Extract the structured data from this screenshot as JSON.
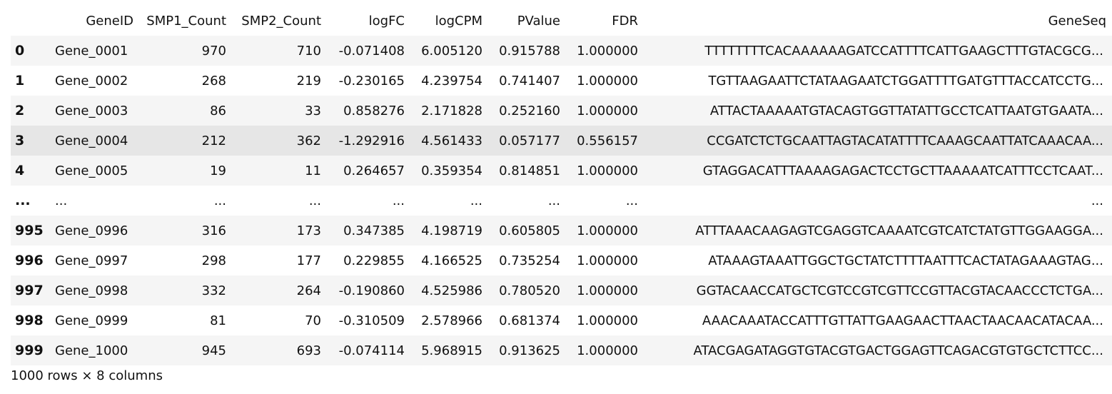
{
  "columns": [
    "",
    "GeneID",
    "SMP1_Count",
    "SMP2_Count",
    "logFC",
    "logCPM",
    "PValue",
    "FDR",
    "GeneSeq"
  ],
  "rows": [
    {
      "idx": "0",
      "GeneID": "Gene_0001",
      "SMP1_Count": "970",
      "SMP2_Count": "710",
      "logFC": "-0.071408",
      "logCPM": "6.005120",
      "PValue": "0.915788",
      "FDR": "1.000000",
      "GeneSeq": "TTTTTTTTCACAAAAAAGATCCATTTTCATTGAAGCTTTGTACGCG..."
    },
    {
      "idx": "1",
      "GeneID": "Gene_0002",
      "SMP1_Count": "268",
      "SMP2_Count": "219",
      "logFC": "-0.230165",
      "logCPM": "4.239754",
      "PValue": "0.741407",
      "FDR": "1.000000",
      "GeneSeq": "TGTTAAGAATTCTATAAGAATCTGGATTTTGATGTTTACCATCCTG..."
    },
    {
      "idx": "2",
      "GeneID": "Gene_0003",
      "SMP1_Count": "86",
      "SMP2_Count": "33",
      "logFC": "0.858276",
      "logCPM": "2.171828",
      "PValue": "0.252160",
      "FDR": "1.000000",
      "GeneSeq": "ATTACTAAAAATGTACAGTGGTTATATTGCCTCATTAATGTGAATA..."
    },
    {
      "idx": "3",
      "GeneID": "Gene_0004",
      "SMP1_Count": "212",
      "SMP2_Count": "362",
      "logFC": "-1.292916",
      "logCPM": "4.561433",
      "PValue": "0.057177",
      "FDR": "0.556157",
      "GeneSeq": "CCGATCTCTGCAATTAGTACATATTTTCAAAGCAATTATCAAACAA...",
      "hover": true
    },
    {
      "idx": "4",
      "GeneID": "Gene_0005",
      "SMP1_Count": "19",
      "SMP2_Count": "11",
      "logFC": "0.264657",
      "logCPM": "0.359354",
      "PValue": "0.814851",
      "FDR": "1.000000",
      "GeneSeq": "GTAGGACATTTAAAAGAGACTCCTGCTTAAAAATCATTTCCTCAAT..."
    },
    {
      "idx": "...",
      "GeneID": "...",
      "SMP1_Count": "...",
      "SMP2_Count": "...",
      "logFC": "...",
      "logCPM": "...",
      "PValue": "...",
      "FDR": "...",
      "GeneSeq": "..."
    },
    {
      "idx": "995",
      "GeneID": "Gene_0996",
      "SMP1_Count": "316",
      "SMP2_Count": "173",
      "logFC": "0.347385",
      "logCPM": "4.198719",
      "PValue": "0.605805",
      "FDR": "1.000000",
      "GeneSeq": "ATTTAAACAAGAGTCGAGGTCAAAATCGTCATCTATGTTGGAAGGA..."
    },
    {
      "idx": "996",
      "GeneID": "Gene_0997",
      "SMP1_Count": "298",
      "SMP2_Count": "177",
      "logFC": "0.229855",
      "logCPM": "4.166525",
      "PValue": "0.735254",
      "FDR": "1.000000",
      "GeneSeq": "ATAAAGTAAATTGGCTGCTATCTTTTAATTTCACTATAGAAAGTAG..."
    },
    {
      "idx": "997",
      "GeneID": "Gene_0998",
      "SMP1_Count": "332",
      "SMP2_Count": "264",
      "logFC": "-0.190860",
      "logCPM": "4.525986",
      "PValue": "0.780520",
      "FDR": "1.000000",
      "GeneSeq": "GGTACAACCATGCTCGTCCGTCGTTCCGTTACGTACAACCCTCTGA..."
    },
    {
      "idx": "998",
      "GeneID": "Gene_0999",
      "SMP1_Count": "81",
      "SMP2_Count": "70",
      "logFC": "-0.310509",
      "logCPM": "2.578966",
      "PValue": "0.681374",
      "FDR": "1.000000",
      "GeneSeq": "AAACAAATACCATTTGTTATTGAAGAACTTAACTAACAACATACAA..."
    },
    {
      "idx": "999",
      "GeneID": "Gene_1000",
      "SMP1_Count": "945",
      "SMP2_Count": "693",
      "logFC": "-0.074114",
      "logCPM": "5.968915",
      "PValue": "0.913625",
      "FDR": "1.000000",
      "GeneSeq": "ATACGAGATAGGTGTACGTGACTGGAGTTCAGACGTGTGCTCTTCC..."
    }
  ],
  "footer": "1000 rows × 8 columns",
  "colors": {
    "stripe": "#f5f5f5",
    "hover": "#e6e6e6",
    "text": "#111111"
  }
}
